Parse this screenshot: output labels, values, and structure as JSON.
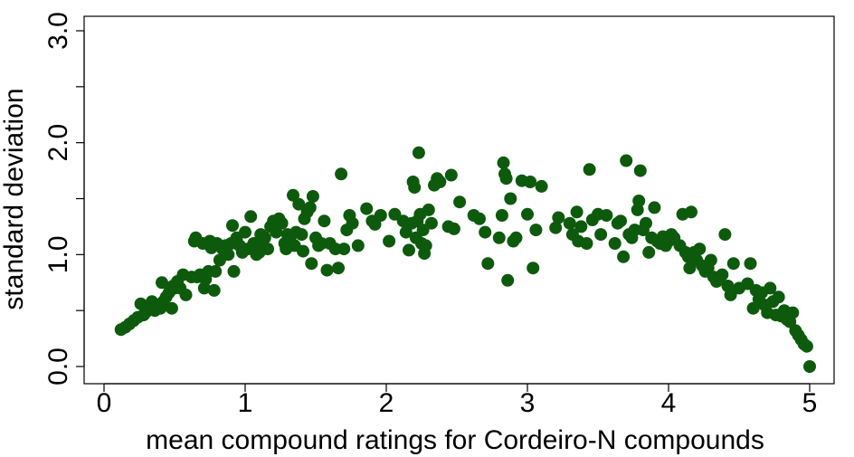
{
  "chart_data": {
    "type": "scatter",
    "title": "",
    "xlabel": "mean compound ratings for Cordeiro-N compounds",
    "ylabel": "standard deviation",
    "xlim": [
      0,
      5
    ],
    "ylim": [
      0,
      3
    ],
    "xticks": [
      0,
      1,
      2,
      3,
      4,
      5
    ],
    "xtick_labels": [
      "0",
      "1",
      "2",
      "3",
      "4",
      "5"
    ],
    "yticks": [
      0,
      0.5,
      1,
      1.5,
      2,
      2.5,
      3
    ],
    "ytick_labels": [
      "0.0",
      "",
      "1.0",
      "",
      "2.0",
      "",
      "3.0"
    ],
    "grid": false,
    "legend": "none",
    "marker_color": "#0d5a0d",
    "points": [
      [
        0.12,
        0.33
      ],
      [
        0.15,
        0.35
      ],
      [
        0.18,
        0.38
      ],
      [
        0.21,
        0.41
      ],
      [
        0.24,
        0.44
      ],
      [
        0.26,
        0.56
      ],
      [
        0.28,
        0.46
      ],
      [
        0.3,
        0.49
      ],
      [
        0.32,
        0.52
      ],
      [
        0.34,
        0.58
      ],
      [
        0.36,
        0.5
      ],
      [
        0.38,
        0.55
      ],
      [
        0.4,
        0.52
      ],
      [
        0.41,
        0.75
      ],
      [
        0.42,
        0.58
      ],
      [
        0.44,
        0.62
      ],
      [
        0.46,
        0.66
      ],
      [
        0.48,
        0.52
      ],
      [
        0.49,
        0.72
      ],
      [
        0.5,
        0.7
      ],
      [
        0.52,
        0.76
      ],
      [
        0.54,
        0.7
      ],
      [
        0.56,
        0.82
      ],
      [
        0.58,
        0.64
      ],
      [
        0.62,
        0.8
      ],
      [
        0.64,
        1.12
      ],
      [
        0.65,
        1.15
      ],
      [
        0.66,
        0.8
      ],
      [
        0.68,
        0.82
      ],
      [
        0.7,
        1.1
      ],
      [
        0.71,
        0.7
      ],
      [
        0.72,
        0.78
      ],
      [
        0.74,
        0.85
      ],
      [
        0.75,
        1.12
      ],
      [
        0.76,
        1.06
      ],
      [
        0.78,
        0.68
      ],
      [
        0.79,
        0.85
      ],
      [
        0.8,
        1.1
      ],
      [
        0.82,
        0.95
      ],
      [
        0.84,
        1.05
      ],
      [
        0.86,
        1.08
      ],
      [
        0.88,
        1.0
      ],
      [
        0.9,
        1.1
      ],
      [
        0.91,
        1.26
      ],
      [
        0.92,
        0.85
      ],
      [
        0.94,
        1.15
      ],
      [
        0.96,
        1.08
      ],
      [
        0.98,
        1.02
      ],
      [
        1.0,
        1.2
      ],
      [
        1.02,
        1.05
      ],
      [
        1.04,
        1.34
      ],
      [
        1.06,
        1.1
      ],
      [
        1.08,
        1.0
      ],
      [
        1.1,
        1.02
      ],
      [
        1.11,
        1.18
      ],
      [
        1.12,
        1.1
      ],
      [
        1.14,
        1.15
      ],
      [
        1.16,
        1.05
      ],
      [
        1.18,
        1.25
      ],
      [
        1.2,
        1.3
      ],
      [
        1.22,
        1.2
      ],
      [
        1.24,
        1.32
      ],
      [
        1.26,
        1.28
      ],
      [
        1.28,
        1.1
      ],
      [
        1.29,
        1.05
      ],
      [
        1.3,
        1.18
      ],
      [
        1.32,
        1.12
      ],
      [
        1.34,
        1.53
      ],
      [
        1.35,
        1.08
      ],
      [
        1.36,
        1.2
      ],
      [
        1.38,
        1.45
      ],
      [
        1.4,
        1.18
      ],
      [
        1.41,
        1.03
      ],
      [
        1.42,
        1.32
      ],
      [
        1.44,
        1.38
      ],
      [
        1.46,
        1.42
      ],
      [
        1.47,
        0.92
      ],
      [
        1.48,
        1.52
      ],
      [
        1.5,
        1.15
      ],
      [
        1.52,
        1.08
      ],
      [
        1.54,
        1.1
      ],
      [
        1.56,
        1.3
      ],
      [
        1.58,
        0.86
      ],
      [
        1.6,
        1.1
      ],
      [
        1.64,
        1.05
      ],
      [
        1.66,
        0.88
      ],
      [
        1.68,
        1.72
      ],
      [
        1.7,
        1.05
      ],
      [
        1.72,
        1.22
      ],
      [
        1.74,
        1.35
      ],
      [
        1.76,
        1.28
      ],
      [
        1.8,
        1.08
      ],
      [
        1.86,
        1.41
      ],
      [
        1.9,
        1.3
      ],
      [
        1.92,
        1.27
      ],
      [
        1.96,
        1.35
      ],
      [
        2.02,
        1.12
      ],
      [
        2.06,
        1.36
      ],
      [
        2.12,
        1.3
      ],
      [
        2.14,
        1.2
      ],
      [
        2.16,
        1.04
      ],
      [
        2.18,
        1.28
      ],
      [
        2.19,
        1.65
      ],
      [
        2.2,
        1.6
      ],
      [
        2.21,
        1.15
      ],
      [
        2.22,
        1.3
      ],
      [
        2.23,
        1.91
      ],
      [
        2.24,
        1.36
      ],
      [
        2.25,
        1.1
      ],
      [
        2.26,
        1.22
      ],
      [
        2.27,
        1.01
      ],
      [
        2.28,
        1.08
      ],
      [
        2.3,
        1.4
      ],
      [
        2.32,
        1.28
      ],
      [
        2.34,
        1.62
      ],
      [
        2.36,
        1.68
      ],
      [
        2.38,
        1.65
      ],
      [
        2.44,
        1.25
      ],
      [
        2.46,
        1.71
      ],
      [
        2.48,
        1.23
      ],
      [
        2.52,
        1.47
      ],
      [
        2.62,
        1.35
      ],
      [
        2.66,
        1.32
      ],
      [
        2.7,
        1.2
      ],
      [
        2.72,
        0.92
      ],
      [
        2.8,
        1.15
      ],
      [
        2.82,
        1.35
      ],
      [
        2.83,
        1.82
      ],
      [
        2.84,
        1.72
      ],
      [
        2.85,
        1.68
      ],
      [
        2.86,
        0.77
      ],
      [
        2.88,
        1.5
      ],
      [
        2.9,
        1.12
      ],
      [
        2.92,
        1.15
      ],
      [
        2.96,
        1.66
      ],
      [
        3.0,
        1.36
      ],
      [
        3.02,
        1.65
      ],
      [
        3.04,
        0.88
      ],
      [
        3.06,
        1.22
      ],
      [
        3.1,
        1.61
      ],
      [
        3.2,
        1.24
      ],
      [
        3.22,
        1.33
      ],
      [
        3.3,
        1.28
      ],
      [
        3.32,
        1.18
      ],
      [
        3.35,
        1.38
      ],
      [
        3.36,
        1.12
      ],
      [
        3.38,
        1.25
      ],
      [
        3.42,
        1.1
      ],
      [
        3.44,
        1.76
      ],
      [
        3.46,
        1.31
      ],
      [
        3.5,
        1.36
      ],
      [
        3.52,
        1.18
      ],
      [
        3.56,
        1.35
      ],
      [
        3.62,
        1.1
      ],
      [
        3.64,
        1.28
      ],
      [
        3.66,
        1.3
      ],
      [
        3.68,
        0.98
      ],
      [
        3.7,
        1.84
      ],
      [
        3.72,
        1.18
      ],
      [
        3.74,
        1.15
      ],
      [
        3.76,
        1.22
      ],
      [
        3.78,
        1.4
      ],
      [
        3.79,
        1.48
      ],
      [
        3.8,
        1.75
      ],
      [
        3.82,
        1.22
      ],
      [
        3.84,
        1.28
      ],
      [
        3.86,
        1.02
      ],
      [
        3.88,
        1.15
      ],
      [
        3.9,
        1.42
      ],
      [
        3.92,
        1.12
      ],
      [
        3.94,
        1.1
      ],
      [
        3.96,
        1.16
      ],
      [
        3.98,
        1.08
      ],
      [
        4.0,
        1.12
      ],
      [
        4.02,
        1.18
      ],
      [
        4.04,
        1.15
      ],
      [
        4.08,
        1.08
      ],
      [
        4.1,
        1.36
      ],
      [
        4.12,
        1.02
      ],
      [
        4.14,
        0.98
      ],
      [
        4.15,
        0.88
      ],
      [
        4.16,
        1.38
      ],
      [
        4.18,
        1.02
      ],
      [
        4.2,
        0.95
      ],
      [
        4.22,
        1.05
      ],
      [
        4.24,
        0.9
      ],
      [
        4.26,
        0.85
      ],
      [
        4.28,
        0.88
      ],
      [
        4.3,
        0.95
      ],
      [
        4.32,
        0.8
      ],
      [
        4.34,
        0.76
      ],
      [
        4.36,
        0.78
      ],
      [
        4.38,
        0.82
      ],
      [
        4.4,
        1.18
      ],
      [
        4.42,
        0.72
      ],
      [
        4.44,
        0.64
      ],
      [
        4.46,
        0.92
      ],
      [
        4.5,
        0.7
      ],
      [
        4.56,
        0.74
      ],
      [
        4.58,
        0.92
      ],
      [
        4.6,
        0.52
      ],
      [
        4.62,
        0.68
      ],
      [
        4.64,
        0.6
      ],
      [
        4.66,
        0.66
      ],
      [
        4.68,
        0.55
      ],
      [
        4.7,
        0.48
      ],
      [
        4.72,
        0.7
      ],
      [
        4.74,
        0.58
      ],
      [
        4.76,
        0.46
      ],
      [
        4.78,
        0.62
      ],
      [
        4.8,
        0.45
      ],
      [
        4.82,
        0.5
      ],
      [
        4.84,
        0.42
      ],
      [
        4.86,
        0.4
      ],
      [
        4.88,
        0.48
      ],
      [
        4.9,
        0.32
      ],
      [
        4.92,
        0.28
      ],
      [
        4.94,
        0.24
      ],
      [
        4.96,
        0.2
      ],
      [
        4.98,
        0.18
      ],
      [
        5.0,
        0.0
      ]
    ]
  }
}
